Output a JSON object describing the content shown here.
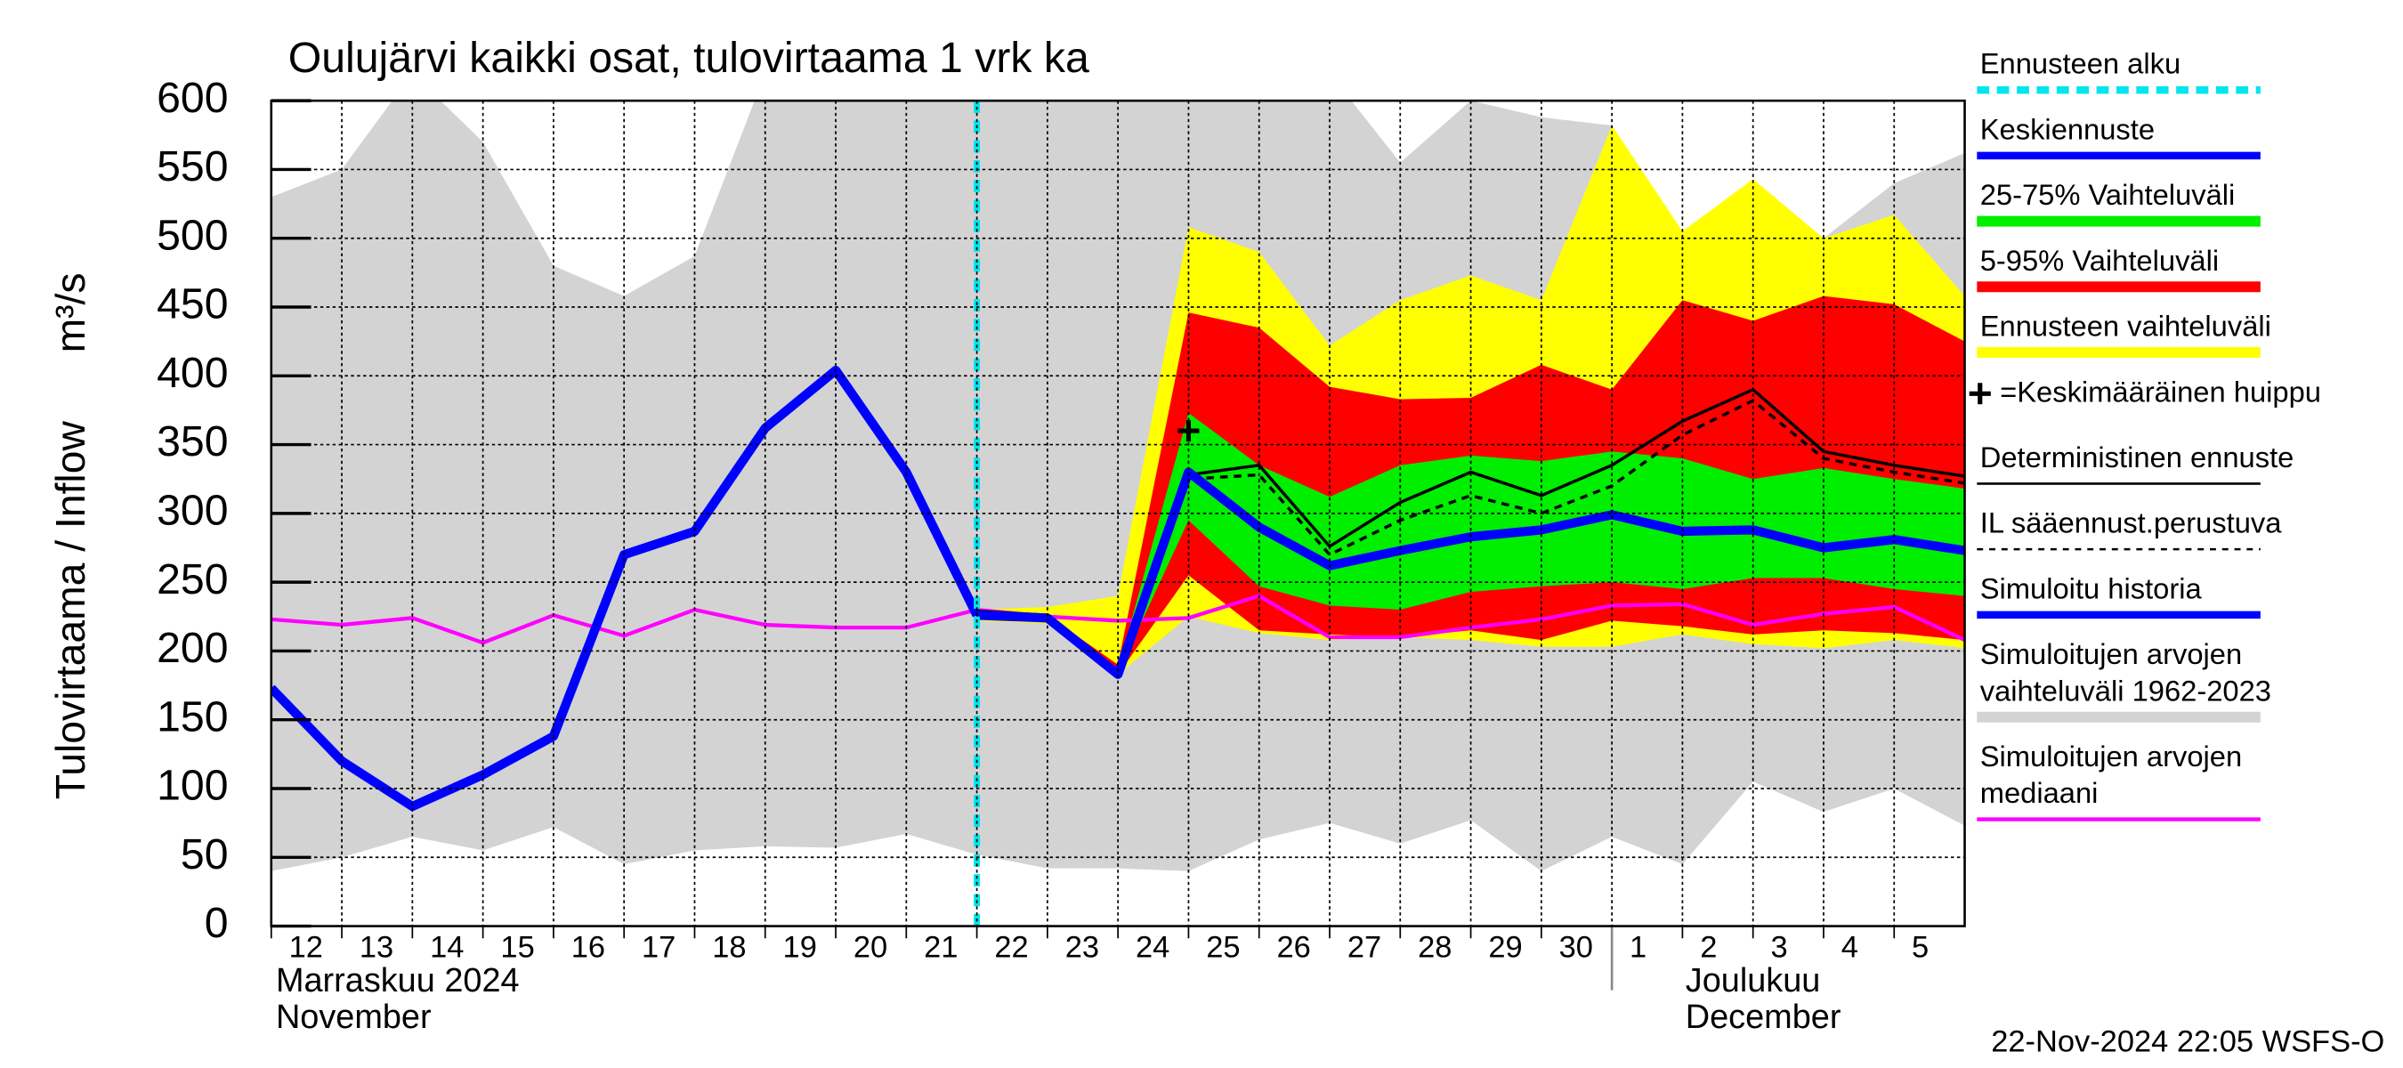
{
  "chart_data": {
    "type": "hydrograph",
    "title": "Oulujärvi kaikki osat, tulovirtaama 1 vrk ka",
    "ylabel": "Tulovirtaama / Inflow",
    "yunit": "m³/s",
    "timestamp": "22-Nov-2024 22:05 WSFS-O",
    "xlim": [
      0,
      24
    ],
    "ylim": [
      0,
      600
    ],
    "yticks": [
      0,
      50,
      100,
      150,
      200,
      250,
      300,
      350,
      400,
      450,
      500,
      550,
      600
    ],
    "xticks": [
      {
        "value": 0,
        "label": "12"
      },
      {
        "value": 1,
        "label": "13"
      },
      {
        "value": 2,
        "label": "14"
      },
      {
        "value": 3,
        "label": "15"
      },
      {
        "value": 4,
        "label": "16"
      },
      {
        "value": 5,
        "label": "17"
      },
      {
        "value": 6,
        "label": "18"
      },
      {
        "value": 7,
        "label": "19"
      },
      {
        "value": 8,
        "label": "20"
      },
      {
        "value": 9,
        "label": "21"
      },
      {
        "value": 10,
        "label": "22"
      },
      {
        "value": 11,
        "label": "23"
      },
      {
        "value": 12,
        "label": "24"
      },
      {
        "value": 13,
        "label": "25"
      },
      {
        "value": 14,
        "label": "26"
      },
      {
        "value": 15,
        "label": "27"
      },
      {
        "value": 16,
        "label": "28"
      },
      {
        "value": 17,
        "label": "29"
      },
      {
        "value": 18,
        "label": "30"
      },
      {
        "value": 19,
        "label": "1"
      },
      {
        "value": 20,
        "label": "2"
      },
      {
        "value": 21,
        "label": "3"
      },
      {
        "value": 22,
        "label": "4"
      },
      {
        "value": 23,
        "label": "5"
      }
    ],
    "x_groups": [
      {
        "label": "Marraskuu 2024",
        "sublabel": "November",
        "x": 0
      },
      {
        "label": "Joulukuu",
        "sublabel": "December",
        "x": 19
      }
    ],
    "grid": true,
    "x": [
      0,
      1,
      2,
      3,
      4,
      5,
      6,
      7,
      8,
      9,
      10,
      11,
      12,
      13,
      14,
      15,
      16,
      17,
      18,
      19,
      20,
      21,
      22,
      23,
      24
    ],
    "forecast_start": {
      "name": "Ennusteen alku",
      "color": "#00e5ee",
      "x": 10
    },
    "series": [
      {
        "name": "Keskiennuste",
        "style": "thick",
        "color": "#0000ff",
        "values": [
          null,
          null,
          null,
          null,
          null,
          null,
          null,
          null,
          null,
          null,
          226,
          224,
          183,
          330,
          290,
          262,
          273,
          283,
          288,
          299,
          287,
          288,
          275,
          281,
          273
        ]
      },
      {
        "name": "25-75% Vaihteluväli",
        "style": "band",
        "color": "#00ee00",
        "upper": [
          null,
          null,
          null,
          null,
          null,
          null,
          null,
          null,
          null,
          null,
          227,
          225,
          187,
          373,
          335,
          312,
          335,
          342,
          338,
          345,
          340,
          325,
          333,
          325,
          318
        ],
        "lower": [
          null,
          null,
          null,
          null,
          null,
          null,
          null,
          null,
          null,
          null,
          225,
          223,
          184,
          295,
          247,
          233,
          230,
          243,
          247,
          250,
          245,
          253,
          253,
          245,
          240
        ]
      },
      {
        "name": "5-95% Vaihteluväli",
        "style": "band",
        "color": "#ff0000",
        "upper": [
          null,
          null,
          null,
          null,
          null,
          null,
          null,
          null,
          null,
          null,
          228,
          226,
          190,
          446,
          435,
          392,
          383,
          384,
          408,
          390,
          455,
          440,
          458,
          452,
          425
        ],
        "lower": [
          null,
          null,
          null,
          null,
          null,
          null,
          null,
          null,
          null,
          null,
          224,
          222,
          183,
          255,
          215,
          212,
          210,
          215,
          208,
          222,
          218,
          212,
          215,
          213,
          208
        ]
      },
      {
        "name": "Ennusteen vaihteluväli",
        "style": "band",
        "color": "#ffff00",
        "upper": [
          null,
          null,
          null,
          null,
          null,
          null,
          null,
          null,
          null,
          null,
          230,
          232,
          240,
          508,
          490,
          422,
          455,
          473,
          455,
          582,
          505,
          543,
          500,
          517,
          458
        ],
        "lower": [
          null,
          null,
          null,
          null,
          null,
          null,
          null,
          null,
          null,
          null,
          222,
          220,
          183,
          225,
          213,
          208,
          210,
          208,
          203,
          203,
          212,
          205,
          202,
          208,
          202
        ]
      },
      {
        "name": "=Keskimääräinen huippu",
        "style": "marker",
        "color": "#000000",
        "x": 13,
        "value": 360
      },
      {
        "name": "Deterministinen ennuste",
        "style": "thin",
        "color": "#000000",
        "values": [
          null,
          null,
          null,
          null,
          null,
          null,
          null,
          null,
          null,
          null,
          229,
          226,
          184,
          328,
          335,
          276,
          308,
          330,
          313,
          335,
          367,
          390,
          345,
          335,
          327
        ]
      },
      {
        "name": "IL sääennust.perustuva",
        "style": "dashed",
        "color": "#000000",
        "values": [
          null,
          null,
          null,
          null,
          null,
          null,
          null,
          null,
          null,
          null,
          228,
          225,
          184,
          325,
          328,
          270,
          295,
          313,
          300,
          320,
          357,
          382,
          340,
          330,
          322
        ]
      },
      {
        "name": "Simuloitu historia",
        "style": "thick",
        "color": "#0000ff",
        "values": [
          173,
          120,
          87,
          110,
          138,
          270,
          287,
          362,
          404,
          330,
          226,
          null,
          null,
          null,
          null,
          null,
          null,
          null,
          null,
          null,
          null,
          null,
          null,
          null,
          null
        ]
      },
      {
        "name": "Simuloitujen arvojen vaihteluväli 1962-2023",
        "style": "band",
        "color": "#d3d3d3",
        "upper": [
          530,
          550,
          620,
          570,
          480,
          458,
          487,
          620,
          620,
          620,
          620,
          620,
          620,
          620,
          620,
          620,
          555,
          600,
          588,
          582,
          487,
          455,
          500,
          540,
          562
        ],
        "lower": [
          40,
          50,
          65,
          55,
          72,
          45,
          55,
          58,
          57,
          67,
          52,
          42,
          42,
          40,
          63,
          75,
          60,
          77,
          40,
          65,
          45,
          105,
          83,
          100,
          73
        ]
      },
      {
        "name": "Simuloitujen arvojen mediaani",
        "style": "median",
        "color": "#ff00ff",
        "values": [
          223,
          219,
          224,
          206,
          226,
          211,
          230,
          219,
          217,
          217,
          230,
          225,
          222,
          224,
          240,
          210,
          210,
          217,
          223,
          233,
          234,
          219,
          227,
          232,
          208
        ]
      }
    ]
  }
}
